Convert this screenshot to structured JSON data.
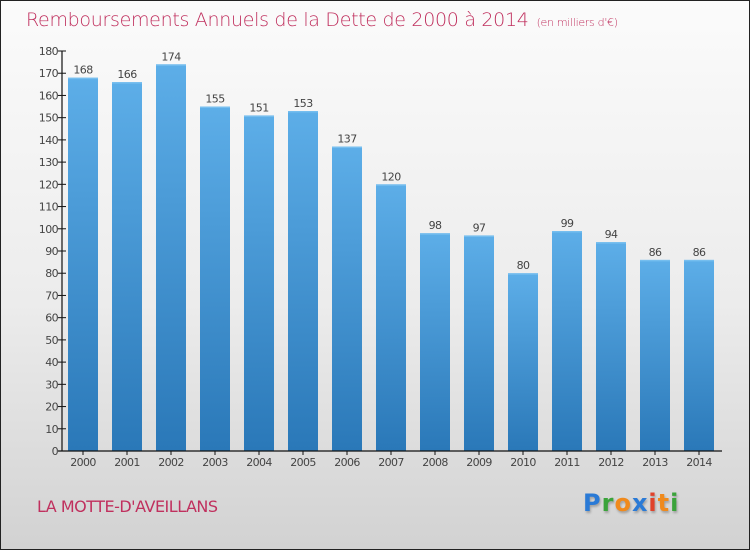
{
  "header": {
    "title": "Remboursements Annuels de la Dette de 2000 à 2014",
    "unit": "(en milliers d'€)"
  },
  "footer": {
    "commune": "LA MOTTE-D'AVEILLANS",
    "logo_letters": [
      {
        "ch": "P",
        "color": "#2a7ad6"
      },
      {
        "ch": "r",
        "color": "#3aa33a"
      },
      {
        "ch": "o",
        "color": "#f08a1c"
      },
      {
        "ch": "x",
        "color": "#2a7ad6"
      },
      {
        "ch": "i",
        "color": "#e0422b"
      },
      {
        "ch": "t",
        "color": "#f08a1c"
      },
      {
        "ch": "i",
        "color": "#3aa33a"
      }
    ]
  },
  "colors": {
    "title": "#c0305e",
    "bar_top": "#5daee8",
    "bar_bottom": "#2a78b8"
  },
  "chart_data": {
    "type": "bar",
    "title": "Remboursements Annuels de la Dette de 2000 à 2014",
    "subtitle": "(en milliers d'€)",
    "xlabel": "",
    "ylabel": "",
    "categories": [
      "2000",
      "2001",
      "2002",
      "2003",
      "2004",
      "2005",
      "2006",
      "2007",
      "2008",
      "2009",
      "2010",
      "2011",
      "2012",
      "2013",
      "2014"
    ],
    "values": [
      168,
      166,
      174,
      155,
      151,
      153,
      137,
      120,
      98,
      97,
      80,
      99,
      94,
      86,
      86
    ],
    "ylim": [
      0,
      180
    ],
    "yticks": [
      0,
      10,
      20,
      30,
      40,
      50,
      60,
      70,
      80,
      90,
      100,
      110,
      120,
      130,
      140,
      150,
      160,
      170,
      180
    ],
    "grid": false,
    "legend": "none",
    "data_labels": true
  }
}
